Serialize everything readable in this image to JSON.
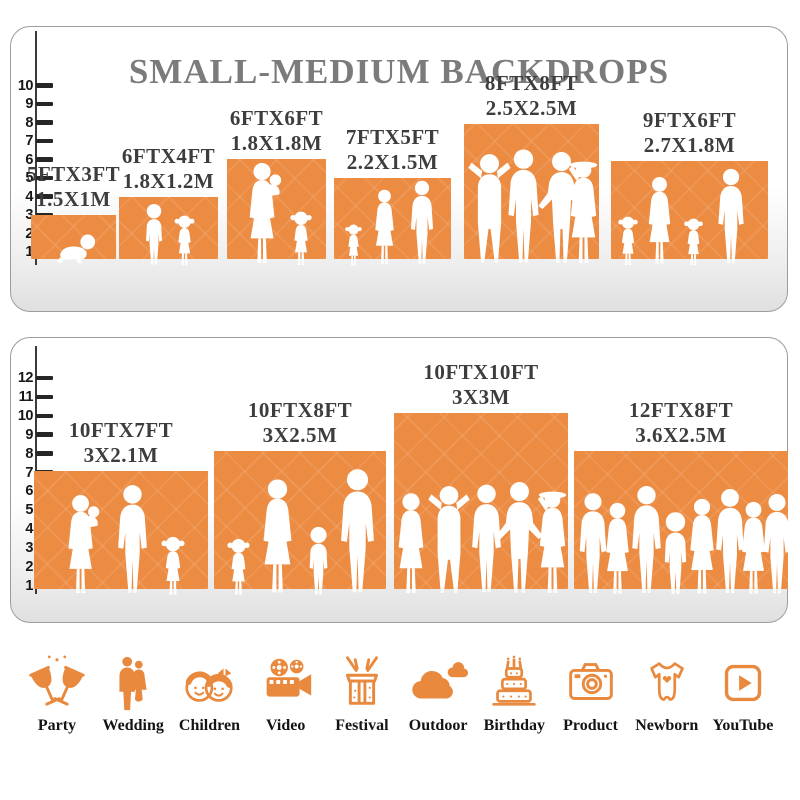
{
  "title": "SMALL-MEDIUM BACKDROPS",
  "accent_color": "#EC8C43",
  "title_color": "#7B7B7B",
  "label_color": "#3D3D3D",
  "panel1": {
    "ruler_unit": "ft",
    "ruler_ticks": [
      "10",
      "9",
      "8",
      "7",
      "6",
      "5",
      "4",
      "3",
      "2",
      "1"
    ],
    "backdrops": [
      {
        "size_ft": "5FTX3FT",
        "size_m": "1.5X1M",
        "width_ft": 5,
        "height_ft": 3
      },
      {
        "size_ft": "6FTX4FT",
        "size_m": "1.8X1.2M",
        "width_ft": 6,
        "height_ft": 4
      },
      {
        "size_ft": "6FTX6FT",
        "size_m": "1.8X1.8M",
        "width_ft": 6,
        "height_ft": 6
      },
      {
        "size_ft": "7FTX5FT",
        "size_m": "2.2X1.5M",
        "width_ft": 7,
        "height_ft": 5
      },
      {
        "size_ft": "8FTX8FT",
        "size_m": "2.5X2.5M",
        "width_ft": 8,
        "height_ft": 8
      },
      {
        "size_ft": "9FTX6FT",
        "size_m": "2.7X1.8M",
        "width_ft": 9,
        "height_ft": 6
      }
    ]
  },
  "panel2": {
    "ruler_unit": "ft",
    "ruler_ticks": [
      "12",
      "11",
      "10",
      "9",
      "8",
      "7",
      "6",
      "5",
      "4",
      "3",
      "2",
      "1"
    ],
    "backdrops": [
      {
        "size_ft": "10FTX7FT",
        "size_m": "3X2.1M",
        "width_ft": 10,
        "height_ft": 7
      },
      {
        "size_ft": "10FTX8FT",
        "size_m": "3X2.5M",
        "width_ft": 10,
        "height_ft": 8
      },
      {
        "size_ft": "10FTX10FT",
        "size_m": "3X3M",
        "width_ft": 10,
        "height_ft": 10
      },
      {
        "size_ft": "12FTX8FT",
        "size_m": "3.6X2.5M",
        "width_ft": 12,
        "height_ft": 8
      }
    ]
  },
  "categories": [
    {
      "label": "Party",
      "icon": "party-icon"
    },
    {
      "label": "Wedding",
      "icon": "wedding-icon"
    },
    {
      "label": "Children",
      "icon": "children-icon"
    },
    {
      "label": "Video",
      "icon": "video-icon"
    },
    {
      "label": "Festival",
      "icon": "festival-icon"
    },
    {
      "label": "Outdoor",
      "icon": "outdoor-icon"
    },
    {
      "label": "Birthday",
      "icon": "birthday-icon"
    },
    {
      "label": "Product",
      "icon": "product-icon"
    },
    {
      "label": "Newborn",
      "icon": "newborn-icon"
    },
    {
      "label": "YouTube",
      "icon": "youtube-icon"
    }
  ]
}
